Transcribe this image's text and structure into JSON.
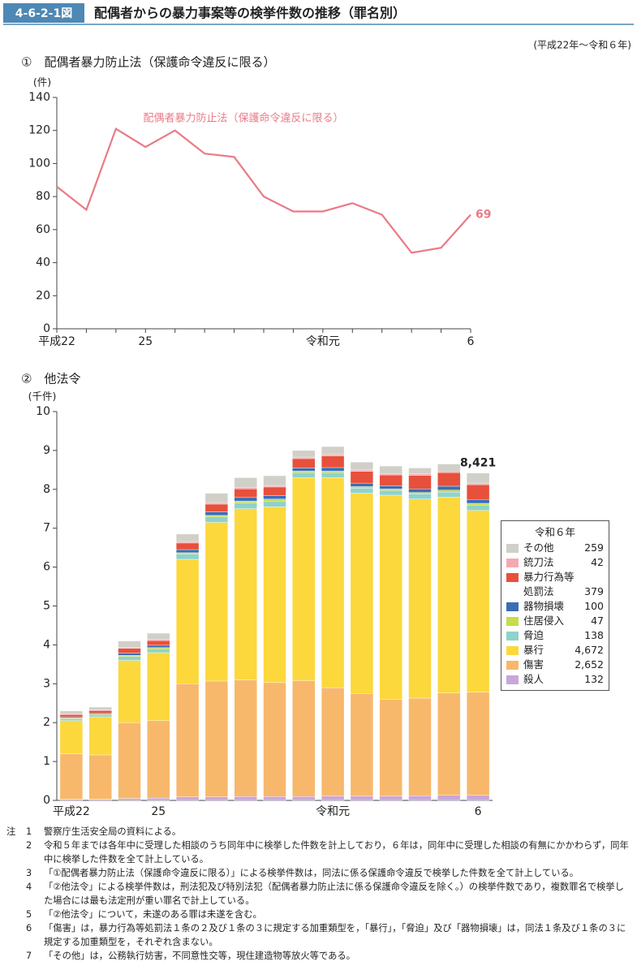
{
  "header": {
    "figure_label": "4-6-2-1図",
    "title": "配偶者からの暴力事案等の検挙件数の推移（罪名別）",
    "subtitle": "(平成22年～令和６年)"
  },
  "chart_data": [
    {
      "type": "line",
      "title": "①　配偶者暴力防止法（保護命令違反に限る）",
      "y_unit": "(件)",
      "categories": [
        "平成22",
        null,
        null,
        "25",
        null,
        null,
        null,
        null,
        null,
        "令和元",
        null,
        null,
        null,
        null,
        "6"
      ],
      "series": [
        {
          "name": "配偶者暴力防止法（保護命令違反に限る）",
          "color": "#ea7a86",
          "values": [
            86,
            72,
            121,
            110,
            120,
            106,
            104,
            80,
            71,
            71,
            76,
            69,
            46,
            49,
            69
          ]
        }
      ],
      "ylim": [
        0,
        140
      ],
      "yticks": [
        0,
        20,
        40,
        60,
        80,
        100,
        120,
        140
      ]
    },
    {
      "type": "stacked_bar",
      "title": "②　他法令",
      "y_unit": "(千件)",
      "legend_title": "令和６年",
      "categories": [
        "平成22",
        null,
        null,
        "25",
        null,
        null,
        null,
        null,
        null,
        "令和元",
        null,
        null,
        null,
        null,
        "6"
      ],
      "series": [
        {
          "name": "殺人",
          "color": "#c9a7d9",
          "values": [
            0.03,
            0.03,
            0.05,
            0.06,
            0.09,
            0.09,
            0.1,
            0.1,
            0.1,
            0.11,
            0.11,
            0.11,
            0.12,
            0.13,
            0.132
          ],
          "value_labels": [
            null,
            null,
            null,
            null,
            null,
            null,
            null,
            null,
            null,
            null,
            null,
            null,
            null,
            null,
            "132"
          ]
        },
        {
          "name": "傷害",
          "color": "#f7b86c",
          "values": [
            1.17,
            1.14,
            1.95,
            1.99,
            2.91,
            2.98,
            3.0,
            2.93,
            2.98,
            2.79,
            2.64,
            2.49,
            2.51,
            2.63,
            2.652
          ],
          "value_labels": [
            null,
            null,
            null,
            null,
            null,
            null,
            null,
            null,
            null,
            null,
            null,
            null,
            null,
            null,
            "2,652"
          ]
        },
        {
          "name": "暴行",
          "color": "#fcd83c",
          "values": [
            0.85,
            0.98,
            1.6,
            1.75,
            3.2,
            4.08,
            4.4,
            4.52,
            5.22,
            5.4,
            5.15,
            5.25,
            5.12,
            5.04,
            4.672
          ],
          "value_labels": [
            null,
            null,
            null,
            null,
            null,
            null,
            null,
            null,
            null,
            null,
            null,
            null,
            null,
            null,
            "4,672"
          ]
        },
        {
          "name": "脅迫",
          "color": "#8fd2cd",
          "values": [
            0.05,
            0.05,
            0.1,
            0.1,
            0.13,
            0.14,
            0.15,
            0.15,
            0.13,
            0.13,
            0.13,
            0.12,
            0.13,
            0.13,
            0.138
          ],
          "value_labels": [
            null,
            null,
            null,
            null,
            null,
            null,
            null,
            null,
            null,
            null,
            null,
            null,
            null,
            null,
            "138"
          ]
        },
        {
          "name": "住居侵入",
          "color": "#c6dc4a",
          "values": [
            0.02,
            0.02,
            0.03,
            0.03,
            0.04,
            0.04,
            0.05,
            0.05,
            0.04,
            0.04,
            0.04,
            0.04,
            0.04,
            0.05,
            0.047
          ],
          "value_labels": [
            null,
            null,
            null,
            null,
            null,
            null,
            null,
            null,
            null,
            null,
            null,
            null,
            null,
            null,
            "47"
          ]
        },
        {
          "name": "器物損壊",
          "color": "#3b6db4",
          "values": [
            0.03,
            0.03,
            0.06,
            0.06,
            0.08,
            0.09,
            0.09,
            0.09,
            0.08,
            0.09,
            0.09,
            0.08,
            0.09,
            0.1,
            0.1
          ],
          "value_labels": [
            null,
            null,
            null,
            null,
            null,
            null,
            null,
            null,
            null,
            null,
            null,
            null,
            null,
            null,
            "100"
          ]
        },
        {
          "name": "暴力行為等\n処罰法",
          "color": "#e7503b",
          "values": [
            0.06,
            0.06,
            0.12,
            0.12,
            0.17,
            0.2,
            0.22,
            0.22,
            0.24,
            0.3,
            0.3,
            0.28,
            0.35,
            0.35,
            0.379
          ],
          "value_labels": [
            null,
            null,
            null,
            null,
            null,
            null,
            null,
            null,
            null,
            null,
            null,
            null,
            null,
            null,
            "379"
          ]
        },
        {
          "name": "銃刀法",
          "color": "#f4a9b1",
          "values": [
            0.02,
            0.02,
            0.03,
            0.03,
            0.04,
            0.04,
            0.04,
            0.04,
            0.04,
            0.04,
            0.04,
            0.04,
            0.04,
            0.04,
            0.042
          ],
          "value_labels": [
            null,
            null,
            null,
            null,
            null,
            null,
            null,
            null,
            null,
            null,
            null,
            null,
            null,
            null,
            "42"
          ]
        },
        {
          "name": "その他",
          "color": "#d0d0c8",
          "values": [
            0.07,
            0.07,
            0.16,
            0.16,
            0.19,
            0.24,
            0.25,
            0.25,
            0.17,
            0.2,
            0.2,
            0.19,
            0.15,
            0.18,
            0.259
          ],
          "value_labels": [
            null,
            null,
            null,
            null,
            null,
            null,
            null,
            null,
            null,
            null,
            null,
            null,
            null,
            null,
            "259"
          ]
        }
      ],
      "total": {
        "value": 8.421,
        "label": "8,421"
      },
      "ylim": [
        0,
        10
      ],
      "yticks": [
        0,
        1,
        2,
        3,
        4,
        5,
        6,
        7,
        8,
        9,
        10
      ]
    }
  ],
  "notes": {
    "label": "注",
    "items": [
      {
        "number": "1",
        "text": "警察庁生活安全局の資料による。"
      },
      {
        "number": "2",
        "text": "令和５年までは各年中に受理した相談のうち同年中に検挙した件数を計上しており，６年は，同年中に受理した相談の有無にかかわらず，同年中に検挙した件数を全て計上している。"
      },
      {
        "number": "3",
        "text": "「①配偶者暴力防止法（保護命令違反に限る）」による検挙件数は，同法に係る保護命令違反で検挙した件数を全て計上している。"
      },
      {
        "number": "4",
        "text": "「②他法令」による検挙件数は，刑法犯及び特別法犯（配偶者暴力防止法に係る保護命令違反を除く。）の検挙件数であり，複数罪名で検挙した場合には最も法定刑が重い罪名で計上している。"
      },
      {
        "number": "5",
        "text": "「②他法令」について，未遂のある罪は未遂を含む。"
      },
      {
        "number": "6",
        "text": "「傷害」は，暴力行為等処罰法１条の２及び１条の３に規定する加重類型を，「暴行」，「脅迫」及び「器物損壊」は，同法１条及び１条の３に規定する加重類型を，それぞれ含まない。"
      },
      {
        "number": "7",
        "text": "「その他」は，公務執行妨害，不同意性交等，現住建造物等放火等である。"
      }
    ]
  }
}
